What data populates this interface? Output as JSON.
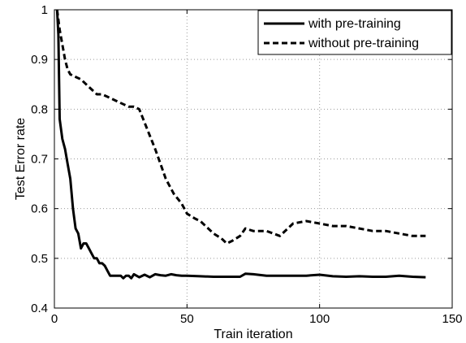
{
  "chart_data": {
    "type": "line",
    "xlabel": "Train iteration",
    "ylabel": "Test Error rate",
    "xlim": [
      0,
      150
    ],
    "ylim": [
      0.4,
      1.0
    ],
    "xticks": [
      0,
      50,
      100,
      150
    ],
    "yticks": [
      0.4,
      0.5,
      0.6,
      0.7,
      0.8,
      0.9,
      1
    ],
    "xtick_labels": [
      "0",
      "50",
      "100",
      "150"
    ],
    "ytick_labels": [
      "0.4",
      "0.5",
      "0.6",
      "0.7",
      "0.8",
      "0.9",
      "1"
    ],
    "grid": true,
    "legend_position": "top-right",
    "series": [
      {
        "name": "with pre-training",
        "style": "solid",
        "color": "#000000",
        "x": [
          1,
          1.5,
          2,
          3,
          4,
          5,
          6,
          7,
          8,
          9,
          10,
          11,
          12,
          13,
          14,
          15,
          16,
          17,
          18,
          19,
          20,
          21,
          22,
          23,
          24,
          25,
          26,
          27,
          28,
          29,
          30,
          32,
          34,
          36,
          38,
          40,
          42,
          44,
          46,
          48,
          50,
          55,
          60,
          65,
          70,
          72,
          75,
          80,
          85,
          90,
          95,
          100,
          105,
          110,
          115,
          120,
          125,
          130,
          135,
          140
        ],
        "y": [
          1.0,
          0.95,
          0.78,
          0.74,
          0.72,
          0.69,
          0.66,
          0.6,
          0.56,
          0.55,
          0.52,
          0.53,
          0.53,
          0.52,
          0.51,
          0.5,
          0.5,
          0.49,
          0.49,
          0.485,
          0.475,
          0.465,
          0.465,
          0.465,
          0.465,
          0.465,
          0.46,
          0.465,
          0.465,
          0.46,
          0.468,
          0.462,
          0.467,
          0.462,
          0.468,
          0.466,
          0.465,
          0.468,
          0.466,
          0.465,
          0.465,
          0.464,
          0.463,
          0.463,
          0.463,
          0.469,
          0.468,
          0.465,
          0.465,
          0.465,
          0.465,
          0.467,
          0.464,
          0.463,
          0.464,
          0.463,
          0.463,
          0.465,
          0.463,
          0.462
        ]
      },
      {
        "name": "without pre-training",
        "style": "dashed",
        "color": "#000000",
        "x": [
          1,
          2,
          3,
          4,
          5,
          6,
          8,
          10,
          12,
          14,
          16,
          18,
          20,
          22,
          24,
          26,
          28,
          30,
          32,
          35,
          38,
          40,
          42,
          45,
          48,
          50,
          53,
          55,
          58,
          60,
          63,
          65,
          67,
          70,
          72,
          75,
          80,
          85,
          90,
          95,
          100,
          105,
          110,
          115,
          120,
          125,
          130,
          135,
          140
        ],
        "y": [
          1.0,
          0.96,
          0.93,
          0.9,
          0.88,
          0.87,
          0.865,
          0.86,
          0.85,
          0.84,
          0.83,
          0.83,
          0.825,
          0.82,
          0.815,
          0.81,
          0.805,
          0.805,
          0.8,
          0.76,
          0.72,
          0.69,
          0.66,
          0.63,
          0.61,
          0.59,
          0.58,
          0.575,
          0.56,
          0.55,
          0.54,
          0.53,
          0.535,
          0.545,
          0.56,
          0.555,
          0.555,
          0.545,
          0.57,
          0.575,
          0.57,
          0.565,
          0.565,
          0.56,
          0.555,
          0.555,
          0.55,
          0.545,
          0.545
        ]
      }
    ]
  }
}
